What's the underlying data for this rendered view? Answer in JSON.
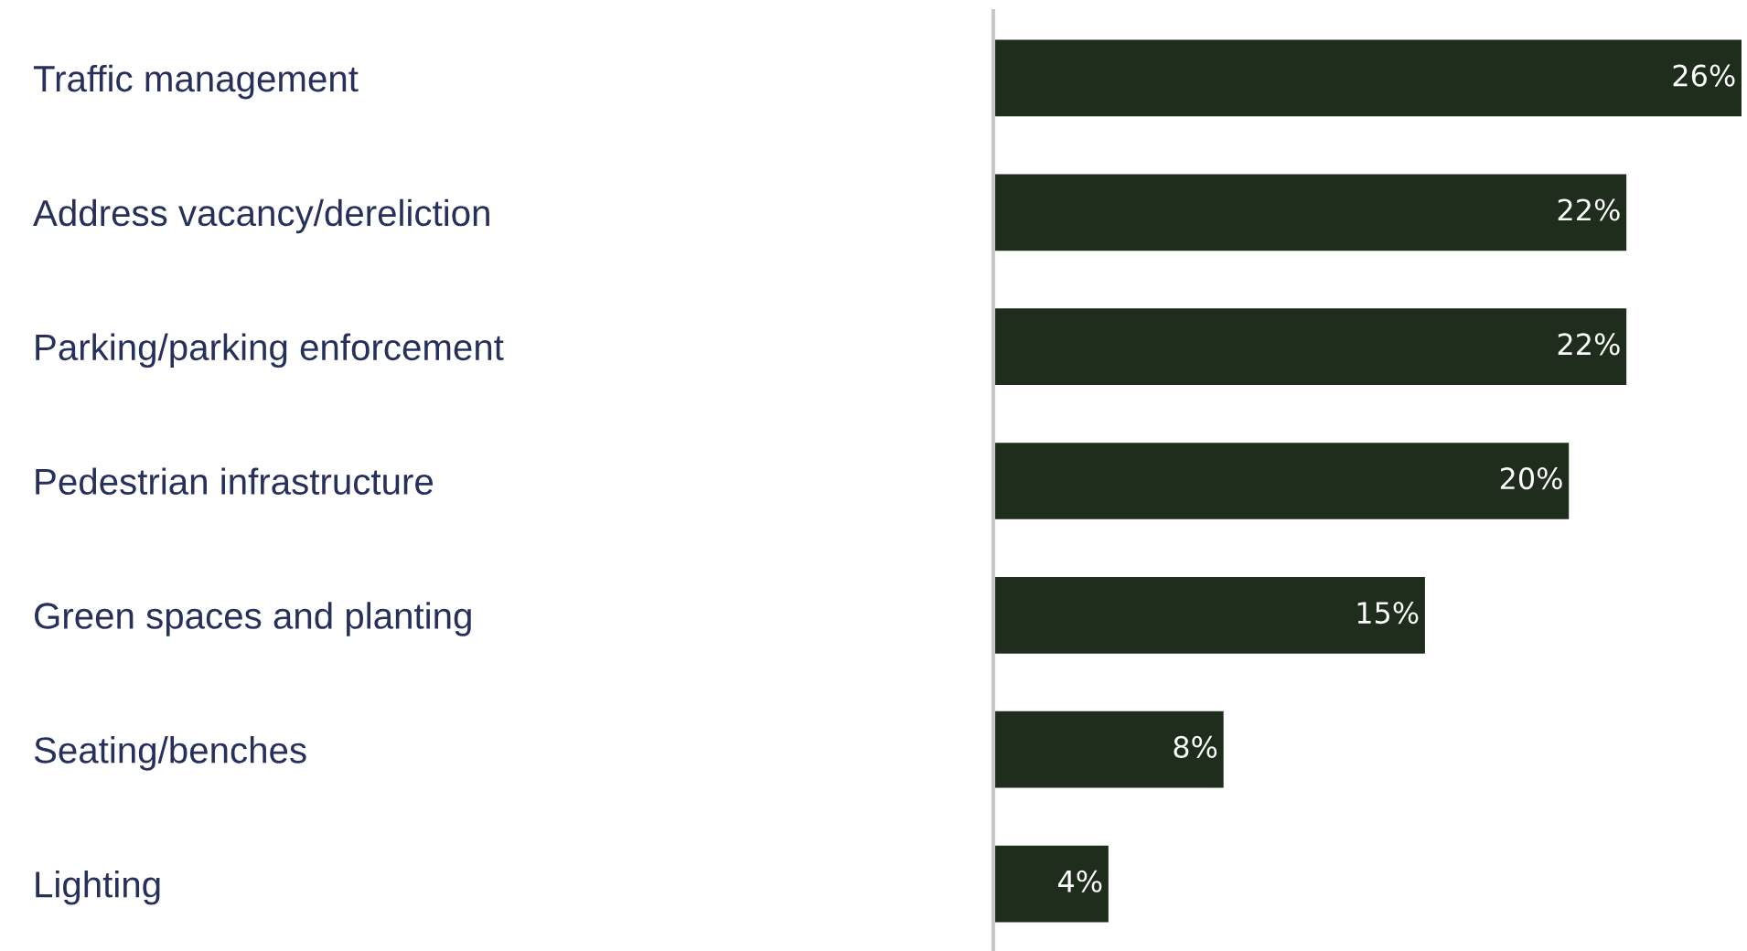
{
  "chart_data": {
    "type": "bar",
    "orientation": "horizontal",
    "categories": [
      "Traffic management",
      "Address vacancy/dereliction",
      "Parking/parking enforcement",
      "Pedestrian infrastructure",
      "Green spaces and planting",
      "Seating/benches",
      "Lighting"
    ],
    "values": [
      26,
      22,
      22,
      20,
      15,
      8,
      4
    ],
    "value_labels": [
      "26%",
      "22%",
      "22%",
      "20%",
      "15%",
      "8%",
      "4%"
    ],
    "color": "#1f2d1c",
    "xlim": [
      0,
      26
    ],
    "grid": false,
    "legend": false
  }
}
